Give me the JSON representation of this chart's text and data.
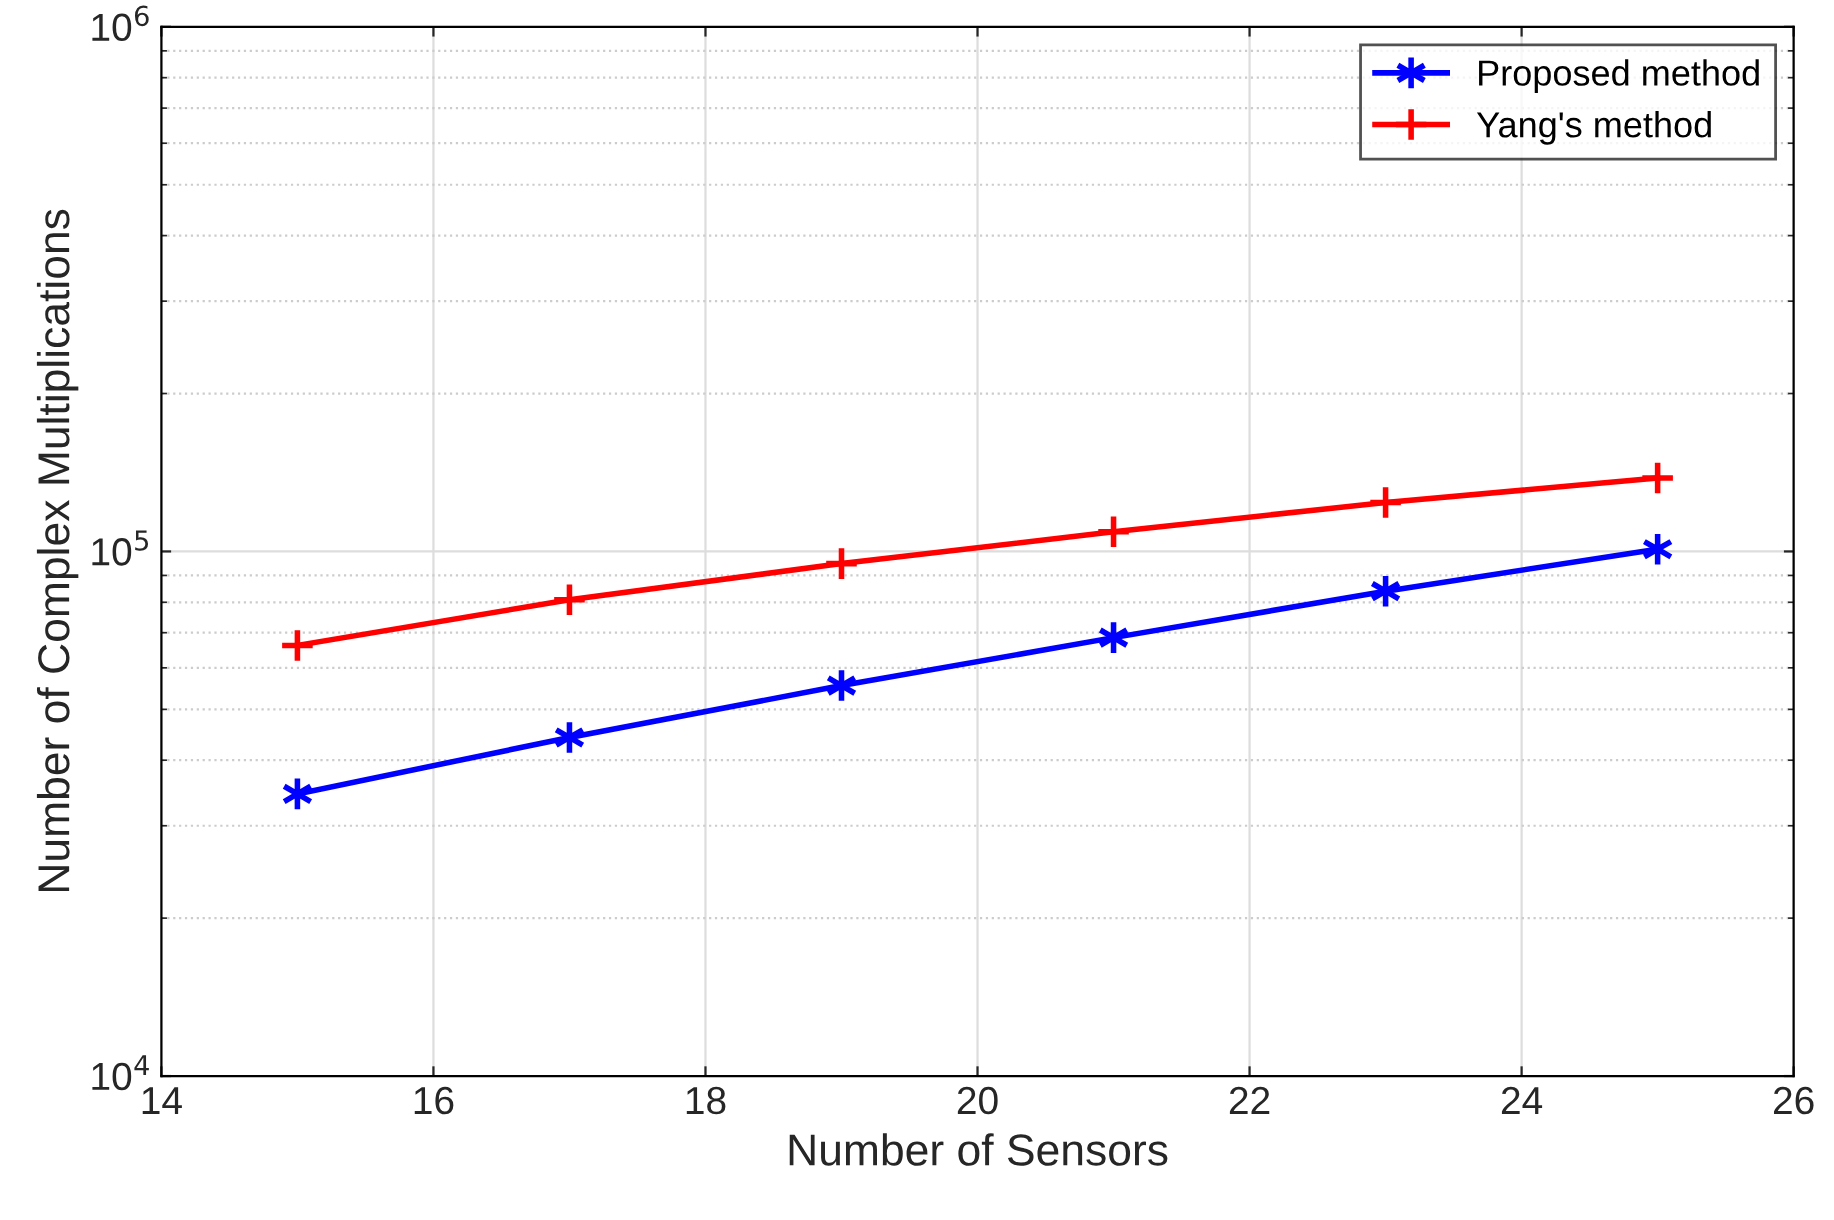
{
  "chart_data": {
    "type": "line",
    "xlabel": "Number of Sensors",
    "ylabel": "Number of Complex Multiplications",
    "log": "y",
    "grid": true,
    "legend": "top right",
    "line_style": "solid",
    "x": [
      15,
      17,
      19,
      21,
      23,
      25
    ],
    "series": [
      {
        "name": "Proposed method",
        "color": "#0000ff",
        "marker": "cross",
        "values": [
          34500,
          44200,
          55500,
          68500,
          84000,
          101000
        ]
      },
      {
        "name": "Yang's method",
        "color": "#ff0000",
        "marker": "cross",
        "values": [
          66200,
          80900,
          94800,
          109000,
          124000,
          138000
        ]
      }
    ],
    "xlim": [
      14,
      26
    ],
    "xticks": [
      14,
      16,
      18,
      20,
      22,
      24,
      26
    ],
    "ylim": [
      10000,
      1000000
    ],
    "yticks": [
      {
        "value": 10000,
        "label": "10$^{4}$"
      },
      {
        "value": 100000,
        "label": "10$^{5}$"
      },
      {
        "value": 1000000,
        "label": "10$^{6}$"
      }
    ]
  }
}
